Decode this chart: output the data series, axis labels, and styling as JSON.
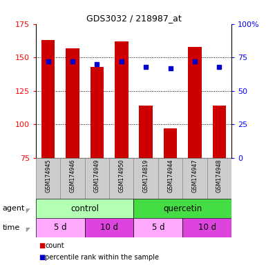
{
  "title": "GDS3032 / 218987_at",
  "samples": [
    "GSM174945",
    "GSM174946",
    "GSM174949",
    "GSM174950",
    "GSM174819",
    "GSM174944",
    "GSM174947",
    "GSM174948"
  ],
  "bar_values": [
    163,
    157,
    143,
    162,
    114,
    97,
    158,
    114
  ],
  "dot_values": [
    72,
    72,
    70,
    72,
    68,
    67,
    72,
    68
  ],
  "bar_color": "#cc0000",
  "dot_color": "#0000cc",
  "ylim_left": [
    75,
    175
  ],
  "ylim_right": [
    0,
    100
  ],
  "yticks_left": [
    75,
    100,
    125,
    150,
    175
  ],
  "yticks_right": [
    0,
    25,
    50,
    75,
    100
  ],
  "ytick_labels_right": [
    "0",
    "25",
    "50",
    "75",
    "100%"
  ],
  "agent_groups": [
    {
      "label": "control",
      "color": "#b3ffb3",
      "span": [
        0,
        4
      ]
    },
    {
      "label": "quercetin",
      "color": "#44dd44",
      "span": [
        4,
        8
      ]
    }
  ],
  "time_groups": [
    {
      "label": "5 d",
      "color": "#ffaaff",
      "span": [
        0,
        2
      ]
    },
    {
      "label": "10 d",
      "color": "#dd44dd",
      "span": [
        2,
        4
      ]
    },
    {
      "label": "5 d",
      "color": "#ffaaff",
      "span": [
        4,
        6
      ]
    },
    {
      "label": "10 d",
      "color": "#dd44dd",
      "span": [
        6,
        8
      ]
    }
  ],
  "legend_count_color": "#cc0000",
  "legend_pct_color": "#0000cc",
  "legend_count_label": "count",
  "legend_pct_label": "percentile rank within the sample",
  "agent_label": "agent",
  "time_label": "time",
  "sample_bg_color": "#cccccc",
  "grid_yticks": [
    100,
    125,
    150
  ]
}
